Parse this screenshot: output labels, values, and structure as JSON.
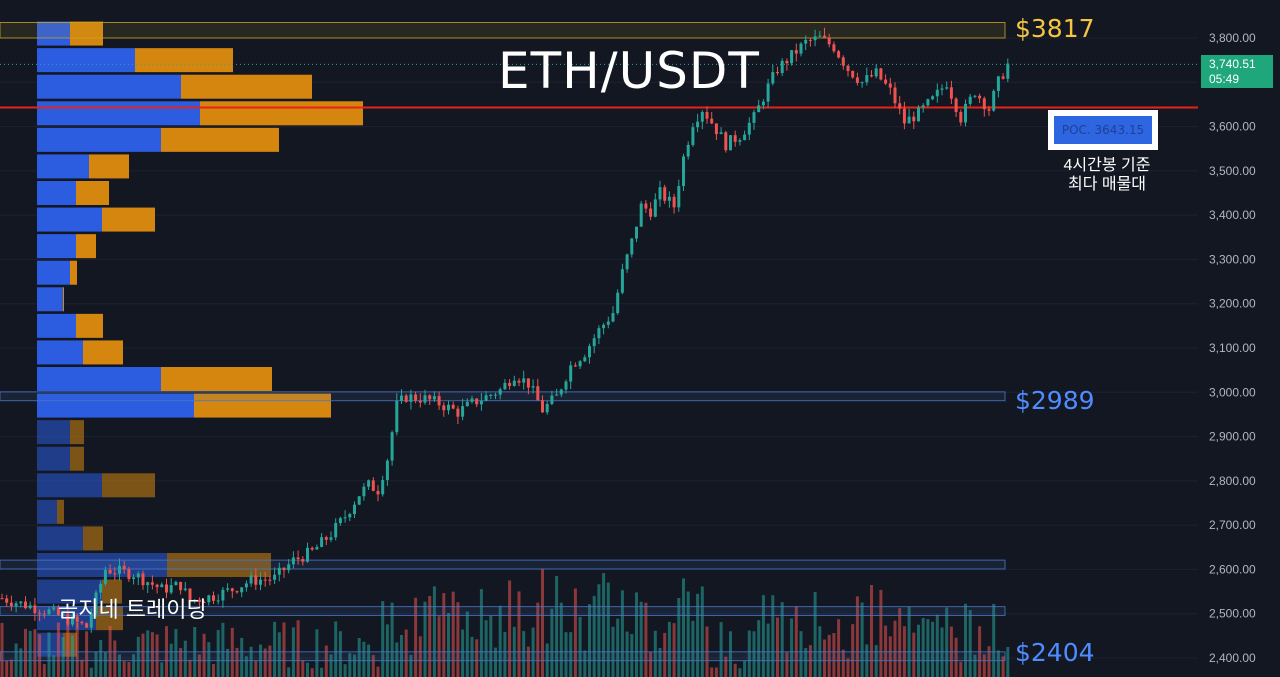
{
  "chart_data": {
    "type": "candlestick",
    "title": "ETH/USDT",
    "ylim": [
      2380,
      3870
    ],
    "y_ticks": [
      "3,800.00",
      "3,700.00",
      "3,600.00",
      "3,500.00",
      "3,400.00",
      "3,300.00",
      "3,200.00",
      "3,100.00",
      "3,000.00",
      "2,900.00",
      "2,800.00",
      "2,700.00",
      "2,600.00",
      "2,500.00",
      "2,400.00"
    ],
    "y_tick_values": [
      3800,
      3700,
      3600,
      3500,
      3400,
      3300,
      3200,
      3100,
      3000,
      2900,
      2800,
      2700,
      2600,
      2500,
      2400
    ],
    "last_price": "3,740.51",
    "countdown": "05:49",
    "annotations": {
      "high_level": "$3817",
      "mid_level": "$2989",
      "low_level": "$2404",
      "poc_label": "POC. 3643.15",
      "poc_value": 3643.15,
      "poc_note_line1": "4시간봉 기준",
      "poc_note_line2": "최다 매물대"
    },
    "brand": "곰지네 트레이딩",
    "waypoints": [
      [
        0,
        2535
      ],
      [
        10,
        2505
      ],
      [
        18,
        2470
      ],
      [
        22,
        2600
      ],
      [
        28,
        2590
      ],
      [
        34,
        2555
      ],
      [
        38,
        2565
      ],
      [
        40,
        2530
      ],
      [
        45,
        2540
      ],
      [
        49,
        2555
      ],
      [
        53,
        2575
      ],
      [
        58,
        2580
      ],
      [
        62,
        2620
      ],
      [
        66,
        2640
      ],
      [
        70,
        2680
      ],
      [
        73,
        2720
      ],
      [
        76,
        2770
      ],
      [
        78,
        2790
      ],
      [
        80,
        2780
      ],
      [
        82,
        2850
      ],
      [
        84,
        2970
      ],
      [
        86,
        2990
      ],
      [
        90,
        2985
      ],
      [
        93,
        2975
      ],
      [
        97,
        2955
      ],
      [
        100,
        2975
      ],
      [
        103,
        2990
      ],
      [
        106,
        3005
      ],
      [
        109,
        3040
      ],
      [
        112,
        3020
      ],
      [
        115,
        2960
      ],
      [
        118,
        2990
      ],
      [
        121,
        3060
      ],
      [
        124,
        3090
      ],
      [
        127,
        3140
      ],
      [
        130,
        3180
      ],
      [
        132,
        3270
      ],
      [
        134,
        3340
      ],
      [
        136,
        3420
      ],
      [
        138,
        3410
      ],
      [
        140,
        3450
      ],
      [
        143,
        3420
      ],
      [
        145,
        3530
      ],
      [
        147,
        3610
      ],
      [
        149,
        3640
      ],
      [
        151,
        3610
      ],
      [
        154,
        3560
      ],
      [
        157,
        3580
      ],
      [
        160,
        3620
      ],
      [
        163,
        3690
      ],
      [
        165,
        3730
      ],
      [
        168,
        3760
      ],
      [
        171,
        3790
      ],
      [
        174,
        3800
      ],
      [
        177,
        3780
      ],
      [
        180,
        3730
      ],
      [
        183,
        3700
      ],
      [
        186,
        3720
      ],
      [
        189,
        3680
      ],
      [
        192,
        3610
      ],
      [
        195,
        3630
      ],
      [
        198,
        3660
      ],
      [
        201,
        3700
      ],
      [
        204,
        3620
      ],
      [
        207,
        3680
      ],
      [
        210,
        3640
      ],
      [
        212,
        3700
      ],
      [
        214,
        3740
      ]
    ],
    "volume_profile": [
      {
        "price": 3810,
        "buy": 33,
        "sell": 33
      },
      {
        "price": 3750,
        "buy": 98,
        "sell": 98
      },
      {
        "price": 3690,
        "buy": 144,
        "sell": 131
      },
      {
        "price": 3630,
        "buy": 163,
        "sell": 163
      },
      {
        "price": 3570,
        "buy": 124,
        "sell": 118
      },
      {
        "price": 3510,
        "buy": 52,
        "sell": 40
      },
      {
        "price": 3450,
        "buy": 39,
        "sell": 33
      },
      {
        "price": 3390,
        "buy": 65,
        "sell": 53
      },
      {
        "price": 3330,
        "buy": 39,
        "sell": 20
      },
      {
        "price": 3270,
        "buy": 33,
        "sell": 7
      },
      {
        "price": 3210,
        "buy": 26,
        "sell": 1
      },
      {
        "price": 3150,
        "buy": 39,
        "sell": 27
      },
      {
        "price": 3090,
        "buy": 46,
        "sell": 40
      },
      {
        "price": 3030,
        "buy": 124,
        "sell": 111
      },
      {
        "price": 2970,
        "buy": 157,
        "sell": 137
      },
      {
        "price": 2910,
        "buy": 33,
        "sell": 14
      },
      {
        "price": 2850,
        "buy": 33,
        "sell": 14
      },
      {
        "price": 2790,
        "buy": 65,
        "sell": 53
      },
      {
        "price": 2730,
        "buy": 20,
        "sell": 7
      },
      {
        "price": 2670,
        "buy": 46,
        "sell": 20
      },
      {
        "price": 2610,
        "buy": 130,
        "sell": 104
      },
      {
        "price": 2550,
        "buy": 65,
        "sell": 20
      },
      {
        "price": 2490,
        "buy": 59,
        "sell": 27
      },
      {
        "price": 2430,
        "buy": 26,
        "sell": 14
      }
    ],
    "zones": [
      {
        "from": 3800,
        "to": 3835,
        "color": "#c9a227"
      },
      {
        "from": 2981,
        "to": 3001,
        "color": "#4a78c9"
      },
      {
        "from": 2601,
        "to": 2621,
        "color": "#4a78c9"
      },
      {
        "from": 2496,
        "to": 2516,
        "color": "#4a78c9"
      },
      {
        "from": 2394,
        "to": 2414,
        "color": "#4a78c9"
      }
    ]
  },
  "colors": {
    "background": "#131722",
    "up": "#26a69a",
    "down": "#ef5350",
    "poc_line": "#e8221b",
    "vp_buy": "#2c5ce0",
    "vp_sell": "#d4860f",
    "high_level": "#f5c542",
    "mid_level": "#4f8cff",
    "axis_text": "#b2b5be"
  }
}
